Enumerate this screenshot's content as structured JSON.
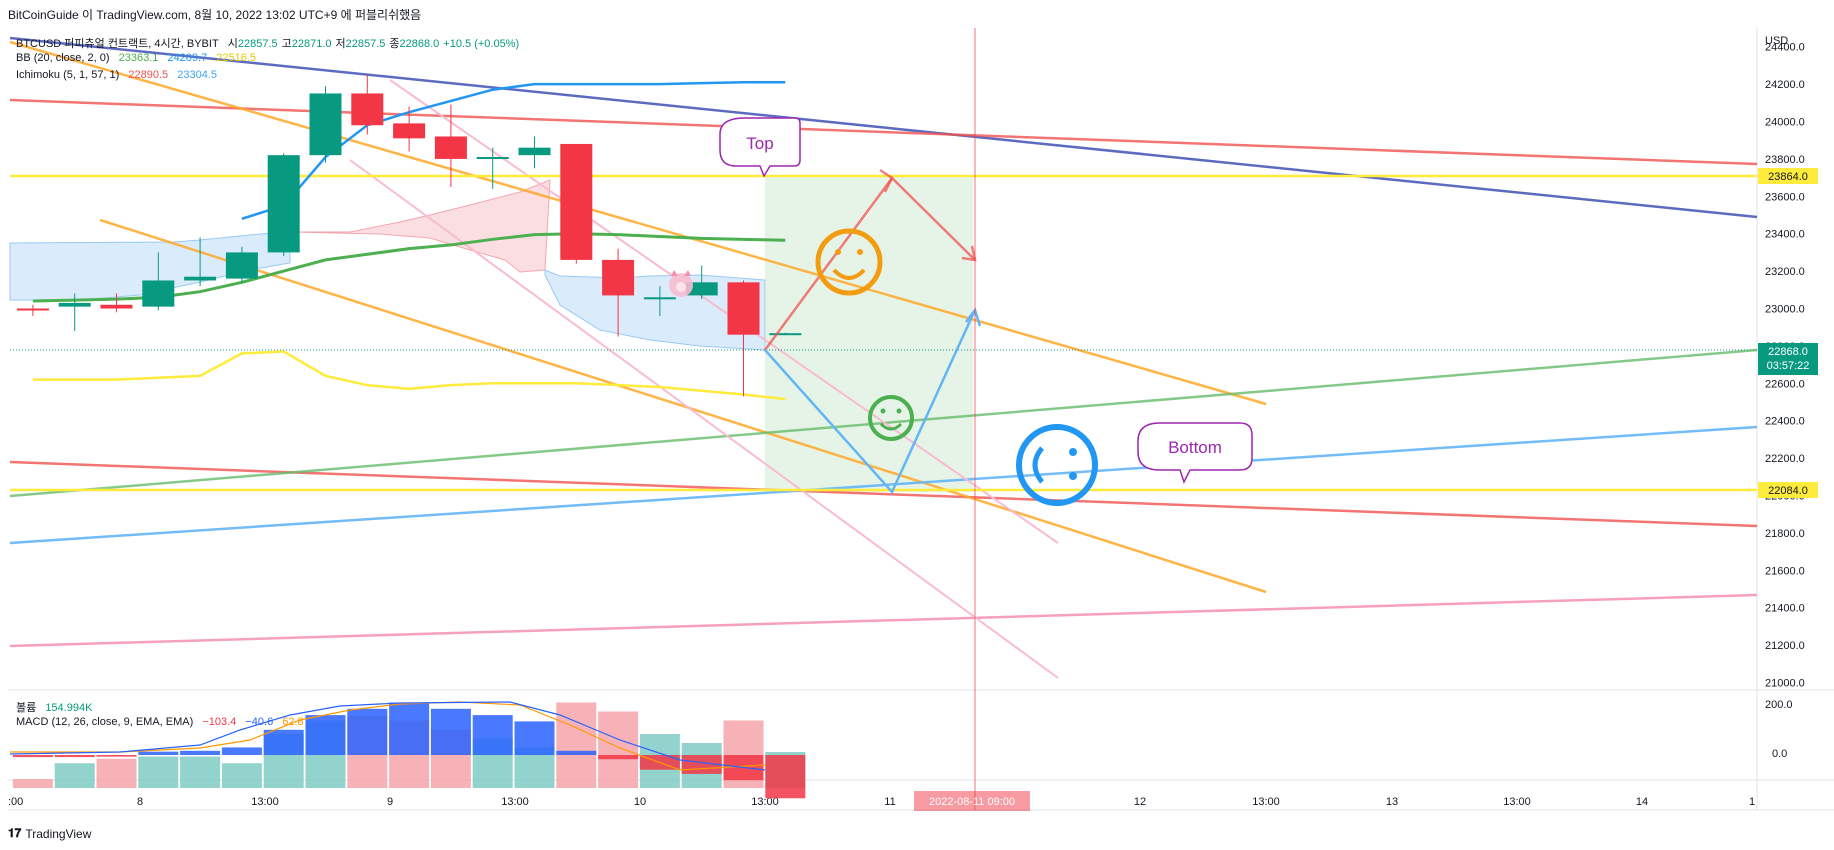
{
  "header": {
    "publish_line": "BitCoinGuide 이 TradingView.com, 8월 10, 2022 13:02 UTC+9 에 퍼블리쉬했음"
  },
  "legend": {
    "symbol_line": {
      "name": "BTCUSD 퍼피츄얼 컨트랙트, 4시간, BYBIT",
      "open_label": "시",
      "open": "22857.5",
      "high_label": "고",
      "high": "22871.0",
      "low_label": "저",
      "low": "22857.5",
      "close_label": "종",
      "close": "22868.0",
      "change": "+10.5 (+0.05%)"
    },
    "bb_line": {
      "name": "BB (20, close, 2, 0)",
      "v1": "23363.1",
      "v2": "24209.7",
      "v3": "22516.5"
    },
    "ichimoku_line": {
      "name": "Ichimoku (5, 1, 57, 1)",
      "v1": "22890.5",
      "v2": "23304.5"
    },
    "volume_line": {
      "name": "볼륨",
      "value": "154.994K"
    },
    "macd_line": {
      "name": "MACD (12, 26, close, 9, EMA, EMA)",
      "v1": "−103.4",
      "v2": "−40.6",
      "v3": "62.8"
    }
  },
  "price_axis": {
    "currency": "USD",
    "marker_top": "23864.0",
    "marker_current": "22868.0",
    "marker_countdown": "03:57:22",
    "marker_bottom": "22084.0"
  },
  "macd_axis": {
    "ticks": [
      "200.0",
      "0.0"
    ]
  },
  "annotations": {
    "top_bubble": "Top",
    "bottom_bubble": "Bottom"
  },
  "crosshair_time_label": "2022-08-11  09:00",
  "footer": {
    "brand": "TradingView"
  },
  "colors": {
    "up": "#089981",
    "down": "#f23645",
    "bb_mid": "#4caf50",
    "bb_upper": "#2196f3",
    "bb_lower": "#ffeb3b",
    "accent_orange": "#ff9800"
  },
  "chart_data": {
    "type": "candlestick",
    "x_tick_labels": [
      ":00",
      "8",
      "13:00",
      "9",
      "13:00",
      "10",
      "13:00",
      "11",
      "12",
      "13:00",
      "13",
      "13:00",
      "14",
      "1"
    ],
    "y_ticks": [
      21000,
      21200,
      21400,
      21600,
      21800,
      22000,
      22200,
      22400,
      22600,
      22800,
      23000,
      23200,
      23400,
      23600,
      23800,
      24000,
      24200,
      24400
    ],
    "ylim": [
      20960,
      24500
    ],
    "candles": [
      {
        "o": 23000,
        "h": 23020,
        "l": 22960,
        "c": 22990
      },
      {
        "o": 23010,
        "h": 23080,
        "l": 22880,
        "c": 23030
      },
      {
        "o": 23020,
        "h": 23080,
        "l": 22980,
        "c": 23000
      },
      {
        "o": 23010,
        "h": 23300,
        "l": 22990,
        "c": 23150
      },
      {
        "o": 23150,
        "h": 23380,
        "l": 23120,
        "c": 23170
      },
      {
        "o": 23160,
        "h": 23330,
        "l": 23140,
        "c": 23300
      },
      {
        "o": 23300,
        "h": 23830,
        "l": 23280,
        "c": 23820
      },
      {
        "o": 23820,
        "h": 24190,
        "l": 23780,
        "c": 24150
      },
      {
        "o": 24150,
        "h": 24250,
        "l": 23930,
        "c": 23980
      },
      {
        "o": 23990,
        "h": 24080,
        "l": 23840,
        "c": 23910
      },
      {
        "o": 23920,
        "h": 24090,
        "l": 23650,
        "c": 23800
      },
      {
        "o": 23800,
        "h": 23860,
        "l": 23640,
        "c": 23810
      },
      {
        "o": 23820,
        "h": 23920,
        "l": 23750,
        "c": 23860
      },
      {
        "o": 23880,
        "h": 23880,
        "l": 23240,
        "c": 23260
      },
      {
        "o": 23260,
        "h": 23320,
        "l": 22850,
        "c": 23070
      },
      {
        "o": 23060,
        "h": 23120,
        "l": 22960,
        "c": 23060
      },
      {
        "o": 23070,
        "h": 23230,
        "l": 23050,
        "c": 23140
      },
      {
        "o": 23140,
        "h": 23150,
        "l": 22530,
        "c": 22860
      },
      {
        "o": 22860,
        "h": 22871,
        "l": 22857.5,
        "c": 22868
      }
    ],
    "bb_middle": [
      23040,
      23045,
      23050,
      23060,
      23090,
      23140,
      23200,
      23260,
      23290,
      23320,
      23340,
      23370,
      23395,
      23400,
      23395,
      23385,
      23375,
      23370,
      23365
    ],
    "bb_upper": [
      null,
      null,
      null,
      null,
      null,
      23480,
      23550,
      23810,
      23980,
      24050,
      24110,
      24170,
      24200,
      24200,
      24200,
      24200,
      24205,
      24210,
      24210
    ],
    "bb_lower": [
      22620,
      22620,
      22620,
      22630,
      22640,
      22760,
      22770,
      22640,
      22590,
      22570,
      22590,
      22600,
      22600,
      22600,
      22590,
      22580,
      22560,
      22540,
      22516
    ],
    "volume": {
      "series": [
        {
          "name": "volume",
          "values": [
            20,
            55,
            65,
            70,
            70,
            55,
            120,
            150,
            160,
            150,
            130,
            110,
            90,
            190,
            170,
            120,
            100,
            150,
            80
          ]
        }
      ]
    },
    "macd_histogram": [
      -5,
      -5,
      -4,
      8,
      10,
      18,
      60,
      95,
      110,
      125,
      110,
      95,
      80,
      10,
      -10,
      -35,
      -45,
      -60,
      -103
    ]
  }
}
